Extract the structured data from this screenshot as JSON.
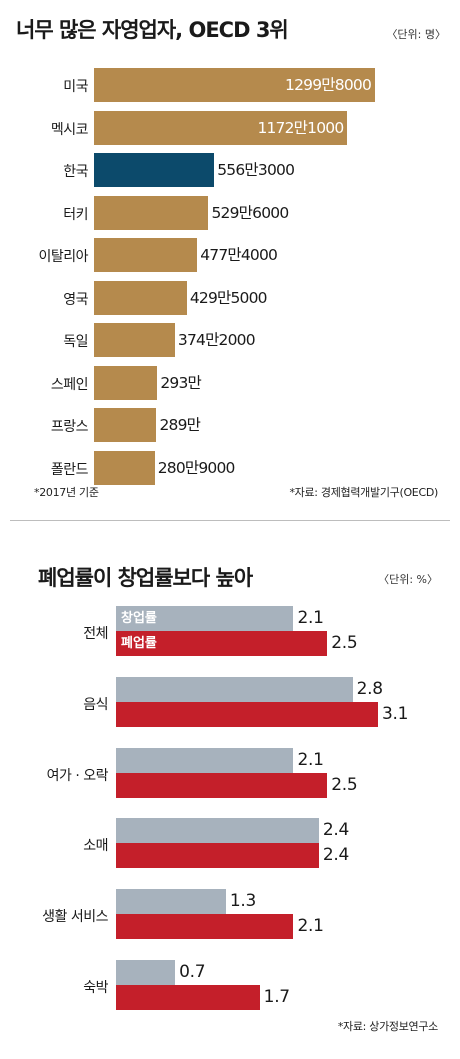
{
  "colors": {
    "gold": "#b58a4d",
    "highlight": "#0c4a6b",
    "gray": "#a7b2bd",
    "red": "#c41f2a"
  },
  "chart_data": [
    {
      "type": "bar",
      "orientation": "horizontal",
      "title": "너무 많은 자영업자, OECD 3위",
      "unit": "〈단위: 명〉",
      "categories": [
        "미국",
        "멕시코",
        "한국",
        "터키",
        "이탈리아",
        "영국",
        "독일",
        "스페인",
        "프랑스",
        "폴란드"
      ],
      "values": [
        12998000,
        11721000,
        5563000,
        5296000,
        4774000,
        4295000,
        3742000,
        2930000,
        2890000,
        2809000
      ],
      "labels": [
        "1299만8000",
        "1172만1000",
        "556만3000",
        "529만6000",
        "477만4000",
        "429만5000",
        "374만2000",
        "293만",
        "289만",
        "280만9000"
      ],
      "highlight_index": 2,
      "notes": [
        "*2017년 기준",
        "*자료: 경제협력개발기구(OECD)"
      ]
    },
    {
      "type": "bar",
      "orientation": "horizontal",
      "title": "폐업률이 창업률보다 높아",
      "unit": "〈단위: %〉",
      "categories": [
        "전체",
        "음식",
        "여가 · 오락",
        "소매",
        "생활 서비스",
        "숙박"
      ],
      "series": [
        {
          "name": "창업률",
          "values": [
            2.1,
            2.8,
            2.1,
            2.4,
            1.3,
            0.7
          ]
        },
        {
          "name": "폐업률",
          "values": [
            2.5,
            3.1,
            2.5,
            2.4,
            2.1,
            1.7
          ]
        }
      ],
      "notes": [
        "*자료: 상가정보연구소"
      ]
    }
  ]
}
